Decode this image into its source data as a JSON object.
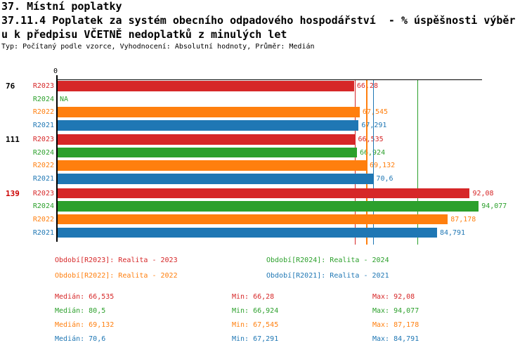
{
  "header": {
    "line1": "37. Místní poplatky",
    "line2": "37.11.4 Poplatek za systém obecního odpadového hospodářství  - % úspěšnosti výběr",
    "line3": "u k předpisu VČETNĚ nedoplatků z minulých let",
    "meta": "Typ: Počítaný podle vzorce, Vyhodnocení: Absolutní hodnoty, Průměr: Medián"
  },
  "colors": {
    "series": {
      "R2023": "#d62728",
      "R2024": "#2ca02c",
      "R2022": "#ff7f0e",
      "R2021": "#1f77b4"
    },
    "group_highlight": "#cc0000",
    "axis": "#000000"
  },
  "chart_data": {
    "type": "bar",
    "orientation": "horizontal",
    "x_axis": {
      "origin_label": "0",
      "min": 0,
      "max": 95,
      "grid": false
    },
    "series_order": [
      "R2023",
      "R2024",
      "R2022",
      "R2021"
    ],
    "groups": [
      {
        "label": "76",
        "label_color": "#000000",
        "bars": [
          {
            "series": "R2023",
            "value": 66.28,
            "label": "66,28"
          },
          {
            "series": "R2024",
            "value": null,
            "label": "NA"
          },
          {
            "series": "R2022",
            "value": 67.545,
            "label": "67,545"
          },
          {
            "series": "R2021",
            "value": 67.291,
            "label": "67,291"
          }
        ]
      },
      {
        "label": "111",
        "label_color": "#000000",
        "bars": [
          {
            "series": "R2023",
            "value": 66.535,
            "label": "66,535"
          },
          {
            "series": "R2024",
            "value": 66.924,
            "label": "66,924"
          },
          {
            "series": "R2022",
            "value": 69.132,
            "label": "69,132"
          },
          {
            "series": "R2021",
            "value": 70.6,
            "label": "70,6"
          }
        ]
      },
      {
        "label": "139",
        "label_color": "#cc0000",
        "bars": [
          {
            "series": "R2023",
            "value": 92.08,
            "label": "92,08"
          },
          {
            "series": "R2024",
            "value": 94.077,
            "label": "94,077"
          },
          {
            "series": "R2022",
            "value": 87.178,
            "label": "87,178"
          },
          {
            "series": "R2021",
            "value": 84.791,
            "label": "84,791"
          }
        ]
      }
    ],
    "median_lines": [
      {
        "series": "R2023",
        "value": 66.535
      },
      {
        "series": "R2022",
        "value": 69.132
      },
      {
        "series": "R2021",
        "value": 70.6
      },
      {
        "series": "R2024",
        "value": 80.5
      }
    ]
  },
  "legend": {
    "items": [
      {
        "series": "R2023",
        "label": "Období[R2023]: Realita - 2023"
      },
      {
        "series": "R2024",
        "label": "Období[R2024]: Realita - 2024"
      },
      {
        "series": "R2022",
        "label": "Období[R2022]: Realita - 2022"
      },
      {
        "series": "R2021",
        "label": "Období[R2021]: Realita - 2021"
      }
    ]
  },
  "stats": {
    "labels": {
      "median": "Medián",
      "min": "Min",
      "max": "Max"
    },
    "rows": [
      {
        "series": "R2023",
        "median": "66,535",
        "min": "66,28",
        "max": "92,08"
      },
      {
        "series": "R2024",
        "median": "80,5",
        "min": "66,924",
        "max": "94,077"
      },
      {
        "series": "R2022",
        "median": "69,132",
        "min": "67,545",
        "max": "87,178"
      },
      {
        "series": "R2021",
        "median": "70,6",
        "min": "67,291",
        "max": "84,791"
      }
    ]
  }
}
